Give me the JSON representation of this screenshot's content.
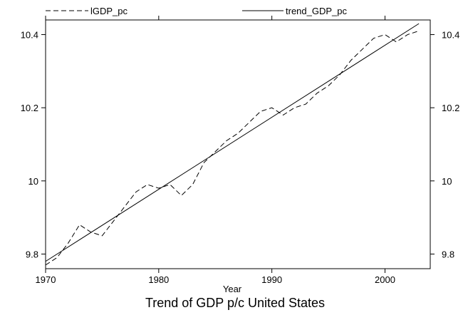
{
  "chart_data": {
    "type": "line",
    "title": "Trend of GDP p/c United States",
    "xlabel": "Year",
    "ylabel": "",
    "xlim": [
      1970,
      2004
    ],
    "ylim": [
      9.76,
      10.44
    ],
    "x_ticks": [
      1970,
      1980,
      1990,
      2000
    ],
    "x_tick_labels": [
      "1970",
      "1980",
      "1990",
      "2000"
    ],
    "y_ticks": [
      9.8,
      10,
      10.2,
      10.4
    ],
    "y_tick_labels": [
      "9.8",
      "10",
      "10.2",
      "10.4"
    ],
    "grid": false,
    "legend_position": "top",
    "series": [
      {
        "name": "lGDP_pc",
        "style": "dashed",
        "color": "#000000",
        "x": [
          1970,
          1971,
          1972,
          1973,
          1974,
          1975,
          1976,
          1977,
          1978,
          1979,
          1980,
          1981,
          1982,
          1983,
          1984,
          1985,
          1986,
          1987,
          1988,
          1989,
          1990,
          1991,
          1992,
          1993,
          1994,
          1995,
          1996,
          1997,
          1998,
          1999,
          2000,
          2001,
          2002,
          2003
        ],
        "values": [
          9.77,
          9.79,
          9.83,
          9.88,
          9.86,
          9.85,
          9.89,
          9.93,
          9.97,
          9.99,
          9.98,
          9.99,
          9.96,
          9.99,
          10.05,
          10.08,
          10.11,
          10.13,
          10.16,
          10.19,
          10.2,
          10.18,
          10.2,
          10.21,
          10.24,
          10.26,
          10.29,
          10.33,
          10.36,
          10.39,
          10.4,
          10.38,
          10.4,
          10.41
        ]
      },
      {
        "name": "trend_GDP_pc",
        "style": "solid",
        "color": "#000000",
        "x": [
          1970,
          2003
        ],
        "values": [
          9.78,
          10.43
        ]
      }
    ]
  }
}
